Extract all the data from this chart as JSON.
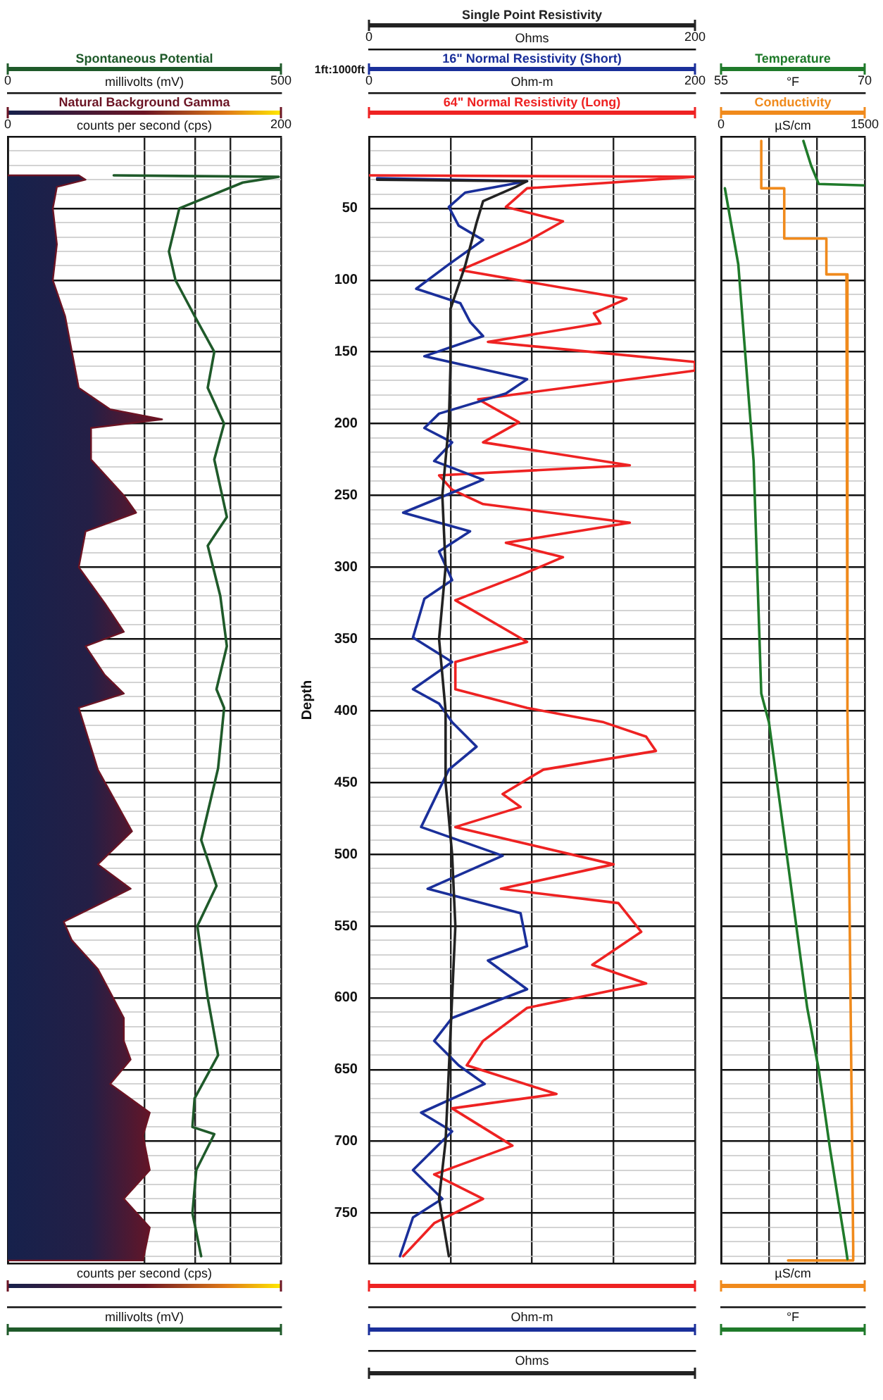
{
  "chart_data": [
    {
      "type": "line",
      "xlim": [
        0,
        500
      ],
      "xticks": [
        0,
        500
      ],
      "xlabel": "millivolts (mV)",
      "x2lim": [
        0,
        200
      ],
      "x2ticks": [
        0,
        {
          "value": 100,
          "label": null
        },
        {
          "value": 137,
          "label": null
        },
        {
          "value": 163,
          "label": null
        },
        200
      ],
      "x2label": "counts per second (cps)",
      "ylim": [
        785,
        0
      ],
      "yticks": [
        {
          "value": 10,
          "label": null
        },
        {
          "value": 20,
          "label": null
        },
        {
          "value": 30,
          "label": null
        },
        {
          "value": 40,
          "label": null
        },
        50,
        {
          "value": 60,
          "label": null
        },
        {
          "value": 70,
          "label": null
        },
        {
          "value": 80,
          "label": null
        },
        {
          "value": 90,
          "label": null
        },
        100,
        {
          "value": 110,
          "label": null
        },
        {
          "value": 120,
          "label": null
        },
        {
          "value": 130,
          "label": null
        },
        {
          "value": 140,
          "label": null
        },
        150,
        {
          "value": 160,
          "label": null
        },
        {
          "value": 170,
          "label": null
        },
        {
          "value": 180,
          "label": null
        },
        {
          "value": 190,
          "label": null
        },
        200,
        {
          "value": 210,
          "label": null
        },
        {
          "value": 220,
          "label": null
        },
        {
          "value": 230,
          "label": null
        },
        {
          "value": 240,
          "label": null
        },
        250,
        {
          "value": 260,
          "label": null
        },
        {
          "value": 270,
          "label": null
        },
        {
          "value": 280,
          "label": null
        },
        {
          "value": 290,
          "label": null
        },
        300,
        {
          "value": 310,
          "label": null
        },
        {
          "value": 320,
          "label": null
        },
        {
          "value": 330,
          "label": null
        },
        {
          "value": 340,
          "label": null
        },
        350,
        {
          "value": 360,
          "label": null
        },
        {
          "value": 370,
          "label": null
        },
        {
          "value": 380,
          "label": null
        },
        {
          "value": 390,
          "label": null
        },
        400,
        {
          "value": 410,
          "label": null
        },
        {
          "value": 420,
          "label": null
        },
        {
          "value": 430,
          "label": null
        },
        {
          "value": 440,
          "label": null
        },
        450,
        {
          "value": 460,
          "label": null
        },
        {
          "value": 470,
          "label": null
        },
        {
          "value": 480,
          "label": null
        },
        {
          "value": 490,
          "label": null
        },
        500,
        {
          "value": 510,
          "label": null
        },
        {
          "value": 520,
          "label": null
        },
        {
          "value": 530,
          "label": null
        },
        {
          "value": 540,
          "label": null
        },
        550,
        {
          "value": 560,
          "label": null
        },
        {
          "value": 570,
          "label": null
        },
        {
          "value": 580,
          "label": null
        },
        {
          "value": 590,
          "label": null
        },
        600,
        {
          "value": 610,
          "label": null
        },
        {
          "value": 620,
          "label": null
        },
        {
          "value": 630,
          "label": null
        },
        {
          "value": 640,
          "label": null
        },
        650,
        {
          "value": 660,
          "label": null
        },
        {
          "value": 670,
          "label": null
        },
        {
          "value": 680,
          "label": null
        },
        {
          "value": 690,
          "label": null
        },
        700,
        {
          "value": 710,
          "label": null
        },
        {
          "value": 720,
          "label": null
        },
        {
          "value": 730,
          "label": null
        },
        {
          "value": 740,
          "label": null
        },
        750,
        {
          "value": 760,
          "label": null
        },
        {
          "value": 770,
          "label": null
        },
        {
          "value": 780,
          "label": null
        }
      ],
      "tick_labels": "x",
      "grid": true,
      "legend": "top",
      "series": [
        {
          "name": "Spontaneous Potential",
          "color": "#1f5a2a",
          "x": [
            194,
            496,
            430,
            314,
            295,
            307,
            342,
            378,
            366,
            396,
            378,
            401,
            366,
            389,
            401,
            382,
            396,
            385,
            354,
            382,
            347,
            366,
            385,
            342,
            338,
            378,
            345,
            338,
            354
          ],
          "values": [
            27,
            28,
            32,
            50,
            80,
            100,
            125,
            150,
            175,
            200,
            225,
            265,
            285,
            320,
            355,
            385,
            398,
            440,
            490,
            522,
            550,
            600,
            640,
            670,
            690,
            695,
            720,
            750,
            780
          ]
        },
        {
          "name": "Natural Background Gamma",
          "type": "area",
          "color": "#6b1424",
          "axis": "x2",
          "x": [
            0,
            52,
            57,
            36,
            33,
            36,
            33,
            42,
            47,
            52,
            75,
            113,
            61,
            61,
            85,
            94,
            57,
            52,
            71,
            85,
            57,
            71,
            85,
            52,
            66,
            91,
            66,
            90,
            41,
            47,
            66,
            85,
            85,
            90,
            75,
            104,
            99,
            104,
            85,
            104,
            99,
            0
          ],
          "values": [
            27,
            27,
            30,
            35,
            50,
            75,
            100,
            125,
            150,
            175,
            190,
            197,
            203,
            225,
            250,
            262,
            275,
            300,
            325,
            345,
            355,
            375,
            388,
            398,
            441,
            484,
            507,
            524,
            547,
            560,
            580,
            614,
            630,
            643,
            660,
            680,
            696,
            720,
            740,
            760,
            783,
            783
          ]
        }
      ]
    },
    {
      "type": "line",
      "xlim": [
        0,
        200
      ],
      "xticks": [
        0,
        {
          "value": 50,
          "label": null
        },
        {
          "value": 100,
          "label": null
        },
        {
          "value": 150,
          "label": null
        },
        200
      ],
      "xlabel": "Ohms",
      "x2lim": [
        0,
        200
      ],
      "x2ticks": [
        0,
        200
      ],
      "x2label": "Ohm-m",
      "ylim": [
        785,
        0
      ],
      "yticks": [
        {
          "value": 10,
          "label": null
        },
        {
          "value": 20,
          "label": null
        },
        {
          "value": 30,
          "label": null
        },
        {
          "value": 40,
          "label": null
        },
        50,
        {
          "value": 60,
          "label": null
        },
        {
          "value": 70,
          "label": null
        },
        {
          "value": 80,
          "label": null
        },
        {
          "value": 90,
          "label": null
        },
        100,
        {
          "value": 110,
          "label": null
        },
        {
          "value": 120,
          "label": null
        },
        {
          "value": 130,
          "label": null
        },
        {
          "value": 140,
          "label": null
        },
        150,
        {
          "value": 160,
          "label": null
        },
        {
          "value": 170,
          "label": null
        },
        {
          "value": 180,
          "label": null
        },
        {
          "value": 190,
          "label": null
        },
        200,
        {
          "value": 210,
          "label": null
        },
        {
          "value": 220,
          "label": null
        },
        {
          "value": 230,
          "label": null
        },
        {
          "value": 240,
          "label": null
        },
        250,
        {
          "value": 260,
          "label": null
        },
        {
          "value": 270,
          "label": null
        },
        {
          "value": 280,
          "label": null
        },
        {
          "value": 290,
          "label": null
        },
        300,
        {
          "value": 310,
          "label": null
        },
        {
          "value": 320,
          "label": null
        },
        {
          "value": 330,
          "label": null
        },
        {
          "value": 340,
          "label": null
        },
        350,
        {
          "value": 360,
          "label": null
        },
        {
          "value": 370,
          "label": null
        },
        {
          "value": 380,
          "label": null
        },
        {
          "value": 390,
          "label": null
        },
        400,
        {
          "value": 410,
          "label": null
        },
        {
          "value": 420,
          "label": null
        },
        {
          "value": 430,
          "label": null
        },
        {
          "value": 440,
          "label": null
        },
        450,
        {
          "value": 460,
          "label": null
        },
        {
          "value": 470,
          "label": null
        },
        {
          "value": 480,
          "label": null
        },
        {
          "value": 490,
          "label": null
        },
        500,
        {
          "value": 510,
          "label": null
        },
        {
          "value": 520,
          "label": null
        },
        {
          "value": 530,
          "label": null
        },
        {
          "value": 540,
          "label": null
        },
        550,
        {
          "value": 560,
          "label": null
        },
        {
          "value": 570,
          "label": null
        },
        {
          "value": 580,
          "label": null
        },
        {
          "value": 590,
          "label": null
        },
        600,
        {
          "value": 610,
          "label": null
        },
        {
          "value": 620,
          "label": null
        },
        {
          "value": 630,
          "label": null
        },
        {
          "value": 640,
          "label": null
        },
        650,
        {
          "value": 660,
          "label": null
        },
        {
          "value": 670,
          "label": null
        },
        {
          "value": 680,
          "label": null
        },
        {
          "value": 690,
          "label": null
        },
        700,
        {
          "value": 710,
          "label": null
        },
        {
          "value": 720,
          "label": null
        },
        {
          "value": 730,
          "label": null
        },
        {
          "value": 740,
          "label": null
        },
        750,
        {
          "value": 760,
          "label": null
        },
        {
          "value": 770,
          "label": null
        },
        {
          "value": 780,
          "label": null
        }
      ],
      "ylabel": "Depth",
      "annotations": [
        "1ft:1000ft"
      ],
      "grid": true,
      "legend": "top",
      "series": [
        {
          "name": "Single Point Resistivity",
          "color": "#222222",
          "x": [
            5,
            97,
            90,
            70,
            66,
            59,
            50,
            50,
            49,
            45,
            47,
            43,
            47,
            47,
            51,
            53,
            51,
            49,
            47,
            43,
            49
          ],
          "values": [
            30,
            31,
            35,
            45,
            60,
            90,
            120,
            160,
            200,
            250,
            300,
            350,
            400,
            450,
            500,
            550,
            600,
            650,
            700,
            740,
            780
          ]
        },
        {
          "name": "16\" Normal Resistivity (Short)",
          "color": "#1a2f9a",
          "axis": "x2",
          "x": [
            5,
            97,
            59,
            49,
            55,
            70,
            49,
            29,
            56,
            62,
            70,
            34,
            97,
            84,
            43,
            34,
            51,
            40,
            70,
            49,
            21,
            62,
            43,
            51,
            34,
            27,
            51,
            27,
            43,
            51,
            66,
            49,
            32,
            82,
            36,
            93,
            97,
            73,
            97,
            51,
            40,
            55,
            71,
            32,
            51,
            27,
            45,
            27,
            19
          ],
          "values": [
            29,
            31,
            39,
            49,
            62,
            72,
            89,
            106,
            116,
            129,
            139,
            153,
            169,
            179,
            193,
            203,
            213,
            226,
            239,
            249,
            262,
            275,
            289,
            309,
            322,
            349,
            366,
            385,
            395,
            408,
            425,
            441,
            481,
            501,
            524,
            541,
            564,
            574,
            594,
            614,
            630,
            647,
            660,
            680,
            693,
            720,
            740,
            753,
            780
          ]
        },
        {
          "name": "64\" Normal Resistivity (Long)",
          "color": "#ee2222",
          "axis": "x2",
          "x": [
            0,
            200,
            97,
            84,
            119,
            97,
            56,
            158,
            138,
            142,
            73,
            200,
            200,
            67,
            92,
            70,
            160,
            43,
            51,
            70,
            160,
            84,
            119,
            92,
            53,
            97,
            53,
            53,
            97,
            144,
            170,
            176,
            107,
            82,
            93,
            53,
            150,
            81,
            153,
            167,
            137,
            170,
            97,
            70,
            60,
            115,
            51,
            88,
            40,
            70,
            40,
            21
          ],
          "values": [
            27,
            28,
            36,
            49,
            59,
            73,
            93,
            113,
            123,
            130,
            143,
            157,
            163,
            183,
            199,
            213,
            229,
            236,
            246,
            256,
            269,
            283,
            293,
            306,
            323,
            352,
            366,
            385,
            398,
            408,
            418,
            428,
            441,
            458,
            467,
            481,
            507,
            524,
            534,
            554,
            577,
            590,
            607,
            630,
            647,
            667,
            677,
            703,
            723,
            740,
            757,
            780
          ]
        }
      ]
    },
    {
      "type": "line",
      "xlim": [
        55,
        70
      ],
      "xticks": [
        55,
        {
          "value": 60,
          "label": null
        },
        {
          "value": 65,
          "label": null
        },
        70
      ],
      "xlabel": "°F",
      "x2lim": [
        0,
        1500
      ],
      "x2ticks": [
        0,
        1500
      ],
      "x2label": "µS/cm",
      "ylim": [
        785,
        0
      ],
      "yticks": [
        {
          "value": 10,
          "label": null
        },
        {
          "value": 20,
          "label": null
        },
        {
          "value": 30,
          "label": null
        },
        {
          "value": 40,
          "label": null
        },
        50,
        {
          "value": 60,
          "label": null
        },
        {
          "value": 70,
          "label": null
        },
        {
          "value": 80,
          "label": null
        },
        {
          "value": 90,
          "label": null
        },
        100,
        {
          "value": 110,
          "label": null
        },
        {
          "value": 120,
          "label": null
        },
        {
          "value": 130,
          "label": null
        },
        {
          "value": 140,
          "label": null
        },
        150,
        {
          "value": 160,
          "label": null
        },
        {
          "value": 170,
          "label": null
        },
        {
          "value": 180,
          "label": null
        },
        {
          "value": 190,
          "label": null
        },
        200,
        {
          "value": 210,
          "label": null
        },
        {
          "value": 220,
          "label": null
        },
        {
          "value": 230,
          "label": null
        },
        {
          "value": 240,
          "label": null
        },
        250,
        {
          "value": 260,
          "label": null
        },
        {
          "value": 270,
          "label": null
        },
        {
          "value": 280,
          "label": null
        },
        {
          "value": 290,
          "label": null
        },
        300,
        {
          "value": 310,
          "label": null
        },
        {
          "value": 320,
          "label": null
        },
        {
          "value": 330,
          "label": null
        },
        {
          "value": 340,
          "label": null
        },
        350,
        {
          "value": 360,
          "label": null
        },
        {
          "value": 370,
          "label": null
        },
        {
          "value": 380,
          "label": null
        },
        {
          "value": 390,
          "label": null
        },
        400,
        {
          "value": 410,
          "label": null
        },
        {
          "value": 420,
          "label": null
        },
        {
          "value": 430,
          "label": null
        },
        {
          "value": 440,
          "label": null
        },
        450,
        {
          "value": 460,
          "label": null
        },
        {
          "value": 470,
          "label": null
        },
        {
          "value": 480,
          "label": null
        },
        {
          "value": 490,
          "label": null
        },
        500,
        {
          "value": 510,
          "label": null
        },
        {
          "value": 520,
          "label": null
        },
        {
          "value": 530,
          "label": null
        },
        {
          "value": 540,
          "label": null
        },
        550,
        {
          "value": 560,
          "label": null
        },
        {
          "value": 570,
          "label": null
        },
        {
          "value": 580,
          "label": null
        },
        {
          "value": 590,
          "label": null
        },
        600,
        {
          "value": 610,
          "label": null
        },
        {
          "value": 620,
          "label": null
        },
        {
          "value": 630,
          "label": null
        },
        {
          "value": 640,
          "label": null
        },
        650,
        {
          "value": 660,
          "label": null
        },
        {
          "value": 670,
          "label": null
        },
        {
          "value": 680,
          "label": null
        },
        {
          "value": 690,
          "label": null
        },
        700,
        {
          "value": 710,
          "label": null
        },
        {
          "value": 720,
          "label": null
        },
        {
          "value": 730,
          "label": null
        },
        {
          "value": 740,
          "label": null
        },
        750,
        {
          "value": 760,
          "label": null
        },
        {
          "value": 770,
          "label": null
        },
        {
          "value": 780,
          "label": null
        }
      ],
      "tick_labels": "x",
      "grid": true,
      "legend": "top",
      "series": [
        {
          "name": "Temperature",
          "color": "#1f7a2a",
          "x": [
            63.6,
            64.4,
            65.2,
            70,
            null,
            55.4,
            56.8,
            58.4,
            59.2,
            60.0,
            62.0,
            64.0,
            65.2,
            66.4,
            68.0,
            68.2
          ],
          "values": [
            3,
            20,
            33,
            34,
            null,
            36,
            89,
            226,
            388,
            408,
            507,
            607,
            650,
            706,
            773,
            782
          ]
        },
        {
          "name": "Conductivity",
          "color": "#f08a1c",
          "axis": "x2",
          "x": [
            420,
            420,
            660,
            660,
            1100,
            1100,
            1310,
            1320,
            1380,
            1380,
            700
          ],
          "values": [
            3,
            36,
            36,
            71,
            71,
            96,
            96,
            400,
            773,
            783,
            783
          ]
        }
      ]
    }
  ]
}
